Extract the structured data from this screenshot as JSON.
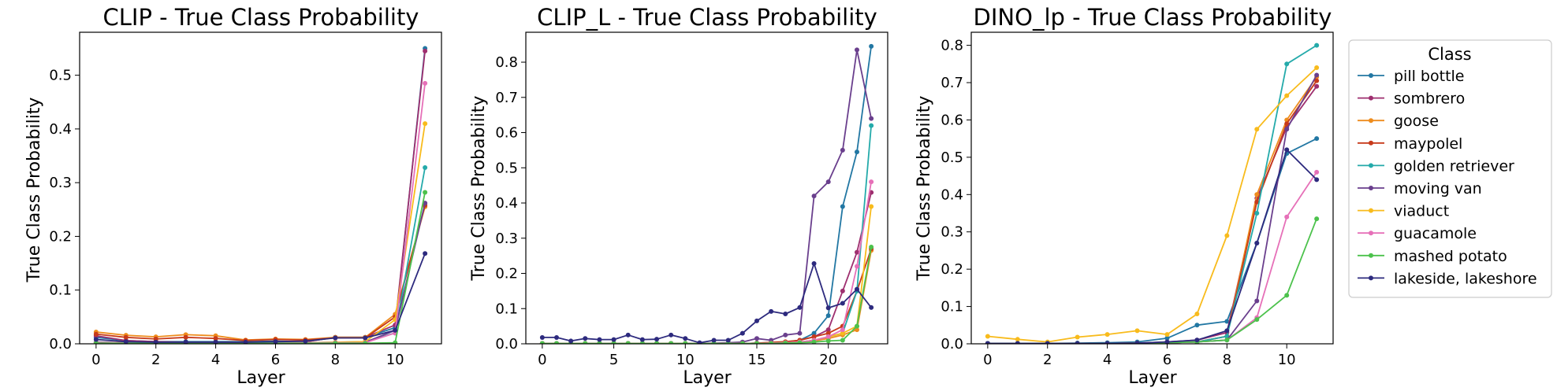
{
  "chart_data": [
    {
      "type": "line",
      "title": "CLIP - True Class Probability",
      "xlabel": "Layer",
      "ylabel": "True Class Probability",
      "xlim": [
        -0.55,
        11.55
      ],
      "ylim": [
        0,
        0.58
      ],
      "xticks": [
        0,
        2,
        4,
        6,
        8,
        10
      ],
      "yticks": [
        0.0,
        0.1,
        0.2,
        0.3,
        0.4,
        0.5
      ],
      "ytick_labels": [
        "0.0",
        "0.1",
        "0.2",
        "0.3",
        "0.4",
        "0.5"
      ],
      "x": [
        0,
        1,
        2,
        3,
        4,
        5,
        6,
        7,
        8,
        9,
        10,
        11
      ],
      "series": [
        {
          "name": "pill bottle",
          "values": [
            0.012,
            0.006,
            0.004,
            0.004,
            0.004,
            0.004,
            0.005,
            0.004,
            0.012,
            0.012,
            0.03,
            0.55
          ]
        },
        {
          "name": "sombrero",
          "values": [
            0.015,
            0.006,
            0.004,
            0.003,
            0.003,
            0.003,
            0.004,
            0.004,
            0.012,
            0.012,
            0.035,
            0.545
          ]
        },
        {
          "name": "goose",
          "values": [
            0.022,
            0.016,
            0.013,
            0.017,
            0.015,
            0.007,
            0.009,
            0.008,
            0.012,
            0.012,
            0.055,
            0.255
          ]
        },
        {
          "name": "maypolel",
          "values": [
            0.018,
            0.012,
            0.009,
            0.012,
            0.01,
            0.006,
            0.008,
            0.007,
            0.011,
            0.011,
            0.05,
            0.258
          ]
        },
        {
          "name": "golden retriever",
          "values": [
            0.003,
            0.002,
            0.002,
            0.002,
            0.002,
            0.002,
            0.002,
            0.002,
            0.003,
            0.004,
            0.02,
            0.328
          ]
        },
        {
          "name": "moving van",
          "values": [
            0.003,
            0.002,
            0.002,
            0.002,
            0.002,
            0.002,
            0.002,
            0.002,
            0.002,
            0.003,
            0.025,
            0.262
          ]
        },
        {
          "name": "viaduct",
          "values": [
            0.002,
            0.002,
            0.002,
            0.002,
            0.002,
            0.002,
            0.002,
            0.002,
            0.003,
            0.004,
            0.045,
            0.41
          ]
        },
        {
          "name": "guacamole",
          "values": [
            0.002,
            0.002,
            0.002,
            0.002,
            0.002,
            0.002,
            0.002,
            0.002,
            0.002,
            0.002,
            0.02,
            0.485
          ]
        },
        {
          "name": "mashed potato",
          "values": [
            0.001,
            0.001,
            0.001,
            0.001,
            0.001,
            0.001,
            0.001,
            0.001,
            0.001,
            0.001,
            0.002,
            0.282
          ]
        },
        {
          "name": "lakeside, lakeshore",
          "values": [
            0.008,
            0.004,
            0.003,
            0.003,
            0.003,
            0.003,
            0.004,
            0.005,
            0.011,
            0.011,
            0.025,
            0.168
          ]
        }
      ]
    },
    {
      "type": "line",
      "title": "CLIP_L - True Class Probability",
      "xlabel": "Layer",
      "ylabel": "True Class Probability",
      "xlim": [
        -1.15,
        24.15
      ],
      "ylim": [
        0,
        0.885
      ],
      "xticks": [
        0,
        5,
        10,
        15,
        20
      ],
      "yticks": [
        0.0,
        0.1,
        0.2,
        0.3,
        0.4,
        0.5,
        0.6,
        0.7,
        0.8
      ],
      "ytick_labels": [
        "0.0",
        "0.1",
        "0.2",
        "0.3",
        "0.4",
        "0.5",
        "0.6",
        "0.7",
        "0.8"
      ],
      "x": [
        0,
        1,
        2,
        3,
        4,
        5,
        6,
        7,
        8,
        9,
        10,
        11,
        12,
        13,
        14,
        15,
        16,
        17,
        18,
        19,
        20,
        21,
        22,
        23
      ],
      "series": [
        {
          "name": "pill bottle",
          "values": [
            0.001,
            0.001,
            0.001,
            0.001,
            0.001,
            0.001,
            0.001,
            0.001,
            0.001,
            0.001,
            0.001,
            0.001,
            0.001,
            0.001,
            0.001,
            0.002,
            0.003,
            0.005,
            0.01,
            0.03,
            0.08,
            0.39,
            0.545,
            0.845
          ]
        },
        {
          "name": "sombrero",
          "values": [
            0.001,
            0.001,
            0.001,
            0.001,
            0.001,
            0.001,
            0.001,
            0.001,
            0.001,
            0.001,
            0.001,
            0.001,
            0.001,
            0.001,
            0.001,
            0.002,
            0.003,
            0.005,
            0.01,
            0.02,
            0.04,
            0.15,
            0.26,
            0.43
          ]
        },
        {
          "name": "goose",
          "values": [
            0.001,
            0.001,
            0.001,
            0.001,
            0.001,
            0.001,
            0.001,
            0.001,
            0.001,
            0.001,
            0.001,
            0.001,
            0.001,
            0.001,
            0.001,
            0.001,
            0.002,
            0.003,
            0.005,
            0.008,
            0.015,
            0.025,
            0.04,
            0.265
          ]
        },
        {
          "name": "maypolel",
          "values": [
            0.001,
            0.001,
            0.001,
            0.001,
            0.001,
            0.001,
            0.001,
            0.001,
            0.001,
            0.001,
            0.001,
            0.001,
            0.001,
            0.001,
            0.001,
            0.002,
            0.004,
            0.006,
            0.01,
            0.02,
            0.03,
            0.05,
            0.15,
            0.27
          ]
        },
        {
          "name": "golden retriever",
          "values": [
            0.001,
            0.001,
            0.001,
            0.001,
            0.001,
            0.001,
            0.001,
            0.001,
            0.001,
            0.001,
            0.001,
            0.001,
            0.001,
            0.001,
            0.001,
            0.001,
            0.002,
            0.003,
            0.005,
            0.01,
            0.02,
            0.03,
            0.15,
            0.62
          ]
        },
        {
          "name": "moving van",
          "values": [
            0.001,
            0.001,
            0.001,
            0.001,
            0.001,
            0.001,
            0.001,
            0.001,
            0.001,
            0.001,
            0.001,
            0.001,
            0.002,
            0.003,
            0.005,
            0.015,
            0.01,
            0.025,
            0.03,
            0.42,
            0.46,
            0.55,
            0.835,
            0.64
          ]
        },
        {
          "name": "viaduct",
          "values": [
            0.001,
            0.001,
            0.001,
            0.001,
            0.001,
            0.001,
            0.001,
            0.001,
            0.001,
            0.001,
            0.001,
            0.001,
            0.001,
            0.001,
            0.001,
            0.001,
            0.002,
            0.003,
            0.005,
            0.01,
            0.02,
            0.03,
            0.05,
            0.39
          ]
        },
        {
          "name": "guacamole",
          "values": [
            0.001,
            0.001,
            0.001,
            0.001,
            0.001,
            0.001,
            0.001,
            0.001,
            0.001,
            0.001,
            0.001,
            0.001,
            0.001,
            0.001,
            0.001,
            0.001,
            0.002,
            0.003,
            0.005,
            0.01,
            0.02,
            0.04,
            0.22,
            0.46
          ]
        },
        {
          "name": "mashed potato",
          "values": [
            0.001,
            0.001,
            0.001,
            0.001,
            0.001,
            0.001,
            0.001,
            0.001,
            0.001,
            0.001,
            0.001,
            0.001,
            0.001,
            0.001,
            0.001,
            0.001,
            0.001,
            0.002,
            0.003,
            0.005,
            0.008,
            0.01,
            0.05,
            0.275
          ]
        },
        {
          "name": "lakeside, lakeshore",
          "values": [
            0.018,
            0.018,
            0.008,
            0.015,
            0.012,
            0.012,
            0.025,
            0.012,
            0.013,
            0.025,
            0.015,
            0.003,
            0.01,
            0.01,
            0.03,
            0.065,
            0.092,
            0.085,
            0.103,
            0.228,
            0.102,
            0.115,
            0.155,
            0.103
          ]
        }
      ]
    },
    {
      "type": "line",
      "title": "DINO_lp - True Class Probability",
      "xlabel": "Layer",
      "ylabel": "True Class Probability",
      "xlim": [
        -0.55,
        11.55
      ],
      "ylim": [
        0,
        0.835
      ],
      "xticks": [
        0,
        2,
        4,
        6,
        8,
        10
      ],
      "yticks": [
        0.0,
        0.1,
        0.2,
        0.3,
        0.4,
        0.5,
        0.6,
        0.7,
        0.8
      ],
      "ytick_labels": [
        "0.0",
        "0.1",
        "0.2",
        "0.3",
        "0.4",
        "0.5",
        "0.6",
        "0.7",
        "0.8"
      ],
      "x": [
        0,
        1,
        2,
        3,
        4,
        5,
        6,
        7,
        8,
        9,
        10,
        11
      ],
      "series": [
        {
          "name": "pill bottle",
          "values": [
            0.001,
            0.001,
            0.001,
            0.002,
            0.003,
            0.005,
            0.015,
            0.05,
            0.06,
            0.27,
            0.51,
            0.55
          ]
        },
        {
          "name": "sombrero",
          "values": [
            0.001,
            0.001,
            0.001,
            0.001,
            0.001,
            0.002,
            0.005,
            0.01,
            0.03,
            0.39,
            0.58,
            0.69
          ]
        },
        {
          "name": "goose",
          "values": [
            0.001,
            0.001,
            0.001,
            0.001,
            0.001,
            0.002,
            0.003,
            0.005,
            0.02,
            0.4,
            0.6,
            0.715
          ]
        },
        {
          "name": "maypolel",
          "values": [
            0.001,
            0.001,
            0.001,
            0.001,
            0.001,
            0.002,
            0.003,
            0.005,
            0.02,
            0.38,
            0.59,
            0.705
          ]
        },
        {
          "name": "golden retriever",
          "values": [
            0.001,
            0.001,
            0.001,
            0.001,
            0.001,
            0.002,
            0.003,
            0.005,
            0.02,
            0.35,
            0.75,
            0.8
          ]
        },
        {
          "name": "moving van",
          "values": [
            0.001,
            0.001,
            0.001,
            0.001,
            0.001,
            0.002,
            0.003,
            0.005,
            0.01,
            0.115,
            0.575,
            0.72
          ]
        },
        {
          "name": "viaduct",
          "values": [
            0.02,
            0.012,
            0.005,
            0.018,
            0.025,
            0.035,
            0.025,
            0.08,
            0.29,
            0.575,
            0.665,
            0.74
          ]
        },
        {
          "name": "guacamole",
          "values": [
            0.001,
            0.001,
            0.001,
            0.001,
            0.001,
            0.002,
            0.003,
            0.005,
            0.01,
            0.07,
            0.34,
            0.46
          ]
        },
        {
          "name": "mashed potato",
          "values": [
            0.001,
            0.001,
            0.001,
            0.001,
            0.001,
            0.002,
            0.003,
            0.005,
            0.01,
            0.065,
            0.13,
            0.335
          ]
        },
        {
          "name": "lakeside, lakeshore",
          "values": [
            0.001,
            0.001,
            0.001,
            0.001,
            0.001,
            0.002,
            0.005,
            0.01,
            0.035,
            0.27,
            0.52,
            0.44
          ]
        }
      ]
    }
  ],
  "legend": {
    "title": "Class",
    "placement": "right",
    "entries": [
      {
        "label": "pill bottle",
        "color": "#2277a3"
      },
      {
        "label": "sombrero",
        "color": "#9e2f6f"
      },
      {
        "label": "goose",
        "color": "#ee8c1d"
      },
      {
        "label": "maypolel",
        "color": "#c73a1a"
      },
      {
        "label": "golden retriever",
        "color": "#24aaaa"
      },
      {
        "label": "moving van",
        "color": "#6a3f8d"
      },
      {
        "label": "viaduct",
        "color": "#f8bb1c"
      },
      {
        "label": "guacamole",
        "color": "#e670b8"
      },
      {
        "label": "mashed potato",
        "color": "#4cc24c"
      },
      {
        "label": "lakeside, lakeshore",
        "color": "#2d2a7e"
      }
    ]
  }
}
